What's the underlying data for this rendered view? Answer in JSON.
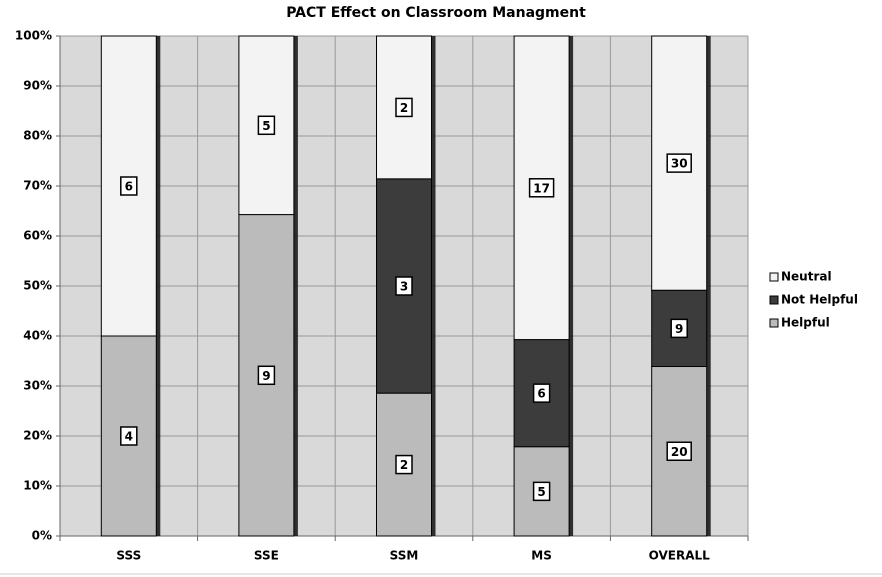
{
  "chart_data": {
    "type": "bar",
    "stacked": "percent",
    "title": "PACT Effect on Classroom Managment",
    "categories": [
      "SSS",
      "SSE",
      "SSM",
      "MS",
      "OVERALL"
    ],
    "series": [
      {
        "name": "Helpful",
        "color": "#bbbbbb",
        "values": [
          4,
          9,
          2,
          5,
          20
        ]
      },
      {
        "name": "Not Helpful",
        "color": "#3c3c3c",
        "values": [
          0,
          0,
          3,
          6,
          9
        ]
      },
      {
        "name": "Neutral",
        "color": "#f3f3f3",
        "values": [
          6,
          5,
          2,
          17,
          30
        ]
      }
    ],
    "ylim": [
      0,
      100
    ],
    "yticks": [
      {
        "value": 0,
        "label": "0%"
      },
      {
        "value": 10,
        "label": "10%"
      },
      {
        "value": 20,
        "label": "20%"
      },
      {
        "value": 30,
        "label": "30%"
      },
      {
        "value": 40,
        "label": "40%"
      },
      {
        "value": 50,
        "label": "50%"
      },
      {
        "value": 60,
        "label": "60%"
      },
      {
        "value": 70,
        "label": "70%"
      },
      {
        "value": 80,
        "label": "80%"
      },
      {
        "value": 90,
        "label": "90%"
      },
      {
        "value": 100,
        "label": "100%"
      }
    ],
    "grid": true,
    "legend": "right"
  }
}
